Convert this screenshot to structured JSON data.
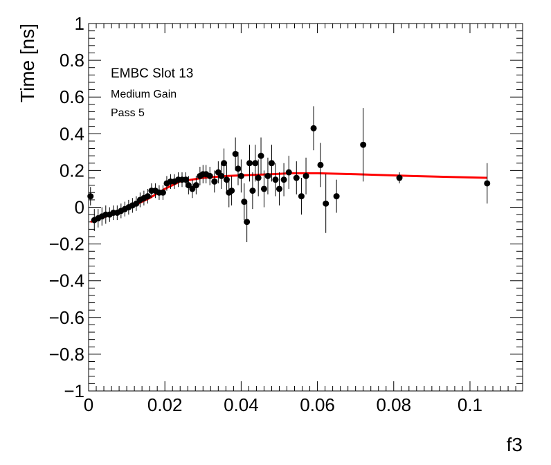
{
  "chart_data": {
    "type": "scatter",
    "title": "",
    "xlabel": "f3",
    "ylabel": "Time [ns]",
    "xlim": [
      0,
      0.1138
    ],
    "ylim": [
      -1,
      1
    ],
    "grid": false,
    "x_tick_labels": [
      "0",
      "0.02",
      "0.04",
      "0.06",
      "0.08",
      "0.1"
    ],
    "x_tick_values": [
      0,
      0.02,
      0.04,
      0.06,
      0.08,
      0.1
    ],
    "y_tick_labels": [
      "−1",
      "−0.8",
      "−0.6",
      "−0.4",
      "−0.2",
      "0",
      "0.2",
      "0.4",
      "0.6",
      "0.8",
      "1"
    ],
    "y_tick_values": [
      -1,
      -0.8,
      -0.6,
      -0.4,
      -0.2,
      0,
      0.2,
      0.4,
      0.6,
      0.8,
      1
    ],
    "annotations": [
      "EMBC Slot 13",
      "Medium Gain",
      "Pass 5"
    ],
    "colors": {
      "points": "#000000",
      "fit": "#ff0000"
    },
    "series": [
      {
        "type": "points_with_errors",
        "points": [
          {
            "x": 0.0005,
            "y": 0.06,
            "err": 0.05
          },
          {
            "x": 0.0015,
            "y": -0.07,
            "err": 0.06
          },
          {
            "x": 0.0025,
            "y": -0.06,
            "err": 0.05
          },
          {
            "x": 0.0035,
            "y": -0.05,
            "err": 0.05
          },
          {
            "x": 0.0045,
            "y": -0.04,
            "err": 0.05
          },
          {
            "x": 0.0055,
            "y": -0.04,
            "err": 0.04
          },
          {
            "x": 0.0065,
            "y": -0.03,
            "err": 0.04
          },
          {
            "x": 0.0075,
            "y": -0.03,
            "err": 0.04
          },
          {
            "x": 0.0085,
            "y": -0.02,
            "err": 0.04
          },
          {
            "x": 0.0095,
            "y": -0.01,
            "err": 0.04
          },
          {
            "x": 0.0105,
            "y": 0.0,
            "err": 0.04
          },
          {
            "x": 0.0115,
            "y": 0.01,
            "err": 0.04
          },
          {
            "x": 0.0125,
            "y": 0.02,
            "err": 0.04
          },
          {
            "x": 0.0135,
            "y": 0.04,
            "err": 0.04
          },
          {
            "x": 0.0145,
            "y": 0.05,
            "err": 0.04
          },
          {
            "x": 0.0155,
            "y": 0.06,
            "err": 0.04
          },
          {
            "x": 0.0165,
            "y": 0.09,
            "err": 0.04
          },
          {
            "x": 0.0175,
            "y": 0.09,
            "err": 0.04
          },
          {
            "x": 0.0185,
            "y": 0.08,
            "err": 0.04
          },
          {
            "x": 0.0195,
            "y": 0.08,
            "err": 0.04
          },
          {
            "x": 0.0205,
            "y": 0.13,
            "err": 0.04
          },
          {
            "x": 0.0215,
            "y": 0.14,
            "err": 0.04
          },
          {
            "x": 0.0225,
            "y": 0.14,
            "err": 0.04
          },
          {
            "x": 0.0235,
            "y": 0.15,
            "err": 0.04
          },
          {
            "x": 0.0245,
            "y": 0.15,
            "err": 0.04
          },
          {
            "x": 0.0255,
            "y": 0.15,
            "err": 0.04
          },
          {
            "x": 0.0262,
            "y": 0.12,
            "err": 0.05
          },
          {
            "x": 0.0272,
            "y": 0.1,
            "err": 0.05
          },
          {
            "x": 0.0282,
            "y": 0.12,
            "err": 0.05
          },
          {
            "x": 0.0292,
            "y": 0.17,
            "err": 0.05
          },
          {
            "x": 0.03,
            "y": 0.18,
            "err": 0.05
          },
          {
            "x": 0.0308,
            "y": 0.18,
            "err": 0.05
          },
          {
            "x": 0.0318,
            "y": 0.17,
            "err": 0.05
          },
          {
            "x": 0.033,
            "y": 0.14,
            "err": 0.06
          },
          {
            "x": 0.034,
            "y": 0.19,
            "err": 0.06
          },
          {
            "x": 0.0348,
            "y": 0.17,
            "err": 0.07
          },
          {
            "x": 0.0355,
            "y": 0.24,
            "err": 0.08
          },
          {
            "x": 0.0362,
            "y": 0.15,
            "err": 0.08
          },
          {
            "x": 0.0368,
            "y": 0.08,
            "err": 0.08
          },
          {
            "x": 0.0375,
            "y": 0.09,
            "err": 0.08
          },
          {
            "x": 0.0385,
            "y": 0.29,
            "err": 0.09
          },
          {
            "x": 0.0392,
            "y": 0.21,
            "err": 0.09
          },
          {
            "x": 0.04,
            "y": 0.17,
            "err": 0.09
          },
          {
            "x": 0.0408,
            "y": 0.03,
            "err": 0.1
          },
          {
            "x": 0.0415,
            "y": -0.08,
            "err": 0.11
          },
          {
            "x": 0.0422,
            "y": 0.24,
            "err": 0.1
          },
          {
            "x": 0.043,
            "y": 0.09,
            "err": 0.1
          },
          {
            "x": 0.0437,
            "y": 0.24,
            "err": 0.1
          },
          {
            "x": 0.0445,
            "y": 0.16,
            "err": 0.1
          },
          {
            "x": 0.0452,
            "y": 0.28,
            "err": 0.1
          },
          {
            "x": 0.046,
            "y": 0.1,
            "err": 0.1
          },
          {
            "x": 0.047,
            "y": 0.17,
            "err": 0.1
          },
          {
            "x": 0.048,
            "y": 0.24,
            "err": 0.1
          },
          {
            "x": 0.049,
            "y": 0.15,
            "err": 0.09
          },
          {
            "x": 0.05,
            "y": 0.1,
            "err": 0.09
          },
          {
            "x": 0.0512,
            "y": 0.15,
            "err": 0.09
          },
          {
            "x": 0.0525,
            "y": 0.19,
            "err": 0.09
          },
          {
            "x": 0.0545,
            "y": 0.16,
            "err": 0.09
          },
          {
            "x": 0.0558,
            "y": 0.06,
            "err": 0.1
          },
          {
            "x": 0.057,
            "y": 0.17,
            "err": 0.1
          },
          {
            "x": 0.059,
            "y": 0.43,
            "err": 0.12
          },
          {
            "x": 0.0608,
            "y": 0.23,
            "err": 0.12
          },
          {
            "x": 0.0622,
            "y": 0.02,
            "err": 0.16
          },
          {
            "x": 0.065,
            "y": 0.06,
            "err": 0.09
          },
          {
            "x": 0.072,
            "y": 0.34,
            "err": 0.2
          },
          {
            "x": 0.0815,
            "y": 0.16,
            "err": 0.03
          },
          {
            "x": 0.1045,
            "y": 0.13,
            "err": 0.11
          }
        ]
      },
      {
        "type": "fit_line",
        "points": [
          {
            "x": 0.0005,
            "y": -0.08
          },
          {
            "x": 0.006,
            "y": -0.04
          },
          {
            "x": 0.011,
            "y": 0.0
          },
          {
            "x": 0.016,
            "y": 0.05
          },
          {
            "x": 0.02,
            "y": 0.1
          },
          {
            "x": 0.024,
            "y": 0.14
          },
          {
            "x": 0.03,
            "y": 0.16
          },
          {
            "x": 0.036,
            "y": 0.17
          },
          {
            "x": 0.042,
            "y": 0.175
          },
          {
            "x": 0.048,
            "y": 0.18
          },
          {
            "x": 0.053,
            "y": 0.185
          },
          {
            "x": 0.06,
            "y": 0.185
          },
          {
            "x": 0.07,
            "y": 0.18
          },
          {
            "x": 0.085,
            "y": 0.17
          },
          {
            "x": 0.1045,
            "y": 0.16
          }
        ]
      }
    ]
  }
}
